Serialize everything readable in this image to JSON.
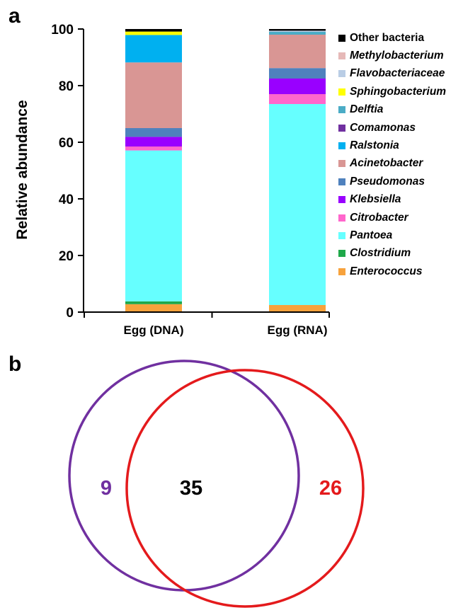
{
  "panels": {
    "a": "a",
    "b": "b"
  },
  "chart_data": [
    {
      "type": "bar",
      "stacked": true,
      "ylabel": "Relative abundance",
      "ylim": [
        0,
        100
      ],
      "yticks": [
        0,
        20,
        40,
        60,
        80,
        100
      ],
      "categories": [
        "Egg (DNA)",
        "Egg (RNA)"
      ],
      "legend_position": "right",
      "series": [
        {
          "name": "Enterococcus",
          "italic": true,
          "color": "#f7a23c",
          "values": [
            2.8,
            2.5
          ]
        },
        {
          "name": "Clostridium",
          "italic": true,
          "color": "#1fa84a",
          "values": [
            1.0,
            0.0
          ]
        },
        {
          "name": "Pantoea",
          "italic": true,
          "color": "#66ffff",
          "values": [
            53.3,
            71.0
          ]
        },
        {
          "name": "Citrobacter",
          "italic": true,
          "color": "#ff66cc",
          "values": [
            1.4,
            3.5
          ]
        },
        {
          "name": "Klebsiella",
          "italic": true,
          "color": "#9900ff",
          "values": [
            3.4,
            5.5
          ]
        },
        {
          "name": "Pseudomonas",
          "italic": true,
          "color": "#4f81bd",
          "values": [
            3.1,
            3.7
          ]
        },
        {
          "name": "Acinetobacter",
          "italic": true,
          "color": "#d99694",
          "values": [
            23.2,
            11.8
          ]
        },
        {
          "name": "Ralstonia",
          "italic": true,
          "color": "#00b0f0",
          "values": [
            9.7,
            0.0
          ]
        },
        {
          "name": "Comamonas",
          "italic": true,
          "color": "#7030a0",
          "values": [
            0.0,
            0.0
          ]
        },
        {
          "name": "Delftia",
          "italic": true,
          "color": "#4bacc6",
          "values": [
            0.0,
            1.0
          ]
        },
        {
          "name": "Sphingobacterium",
          "italic": true,
          "color": "#ffff00",
          "values": [
            1.2,
            0.0
          ]
        },
        {
          "name": "Flavobacteriaceae",
          "italic": true,
          "color": "#b9cde5",
          "values": [
            0.0,
            0.4
          ]
        },
        {
          "name": "Methylobacterium",
          "italic": true,
          "color": "#e6b9b8",
          "values": [
            0.0,
            0.0
          ]
        },
        {
          "name": "Other bacteria",
          "italic": false,
          "color": "#000000",
          "values": [
            0.9,
            0.6
          ]
        }
      ]
    },
    {
      "type": "venn",
      "sets": [
        {
          "only": 9,
          "color": "#7030a0"
        },
        {
          "only": 26,
          "color": "#e41a1c"
        }
      ],
      "intersection": 35
    }
  ]
}
